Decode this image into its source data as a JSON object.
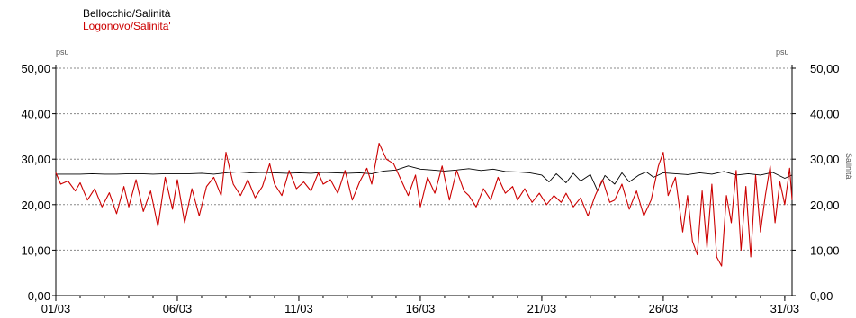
{
  "chart_data": {
    "type": "line",
    "title": "",
    "xlabel": "",
    "ylabel_left": "psu",
    "ylabel_right": "psu",
    "right_axis_title": "Salinità",
    "xlim": [
      1,
      31.3
    ],
    "ylim": [
      0,
      50
    ],
    "y_ticks": [
      "0,00",
      "10,00",
      "20,00",
      "30,00",
      "40,00",
      "50,00"
    ],
    "y_tick_values": [
      0,
      10,
      20,
      30,
      40,
      50
    ],
    "x_ticks": [
      "01/03",
      "06/03",
      "11/03",
      "16/03",
      "21/03",
      "26/03",
      "31/03"
    ],
    "x_tick_values": [
      1,
      6,
      11,
      16,
      21,
      26,
      31
    ],
    "grid": true,
    "legend_position": "top-left",
    "series": [
      {
        "name": "Bellocchio/Salinità",
        "color": "#000000",
        "x": [
          1.0,
          1.5,
          2.0,
          2.5,
          3.0,
          3.5,
          4.0,
          4.5,
          5.0,
          5.5,
          6.0,
          6.5,
          7.0,
          7.5,
          8.0,
          8.5,
          9.0,
          9.5,
          10.0,
          10.5,
          11.0,
          11.5,
          12.0,
          12.5,
          13.0,
          13.5,
          14.0,
          14.5,
          15.0,
          15.5,
          16.0,
          16.5,
          17.0,
          17.5,
          18.0,
          18.5,
          19.0,
          19.5,
          20.0,
          20.5,
          21.0,
          21.3,
          21.6,
          22.0,
          22.3,
          22.6,
          23.0,
          23.3,
          23.6,
          24.0,
          24.3,
          24.6,
          25.0,
          25.3,
          25.6,
          26.0,
          26.5,
          27.0,
          27.5,
          28.0,
          28.5,
          29.0,
          29.5,
          30.0,
          30.5,
          31.0,
          31.3
        ],
        "values": [
          26.7,
          26.7,
          26.7,
          26.8,
          26.7,
          26.7,
          26.8,
          26.8,
          26.7,
          26.8,
          26.8,
          26.8,
          26.9,
          26.7,
          27.0,
          27.2,
          27.0,
          27.1,
          27.0,
          26.9,
          27.0,
          26.9,
          27.1,
          27.0,
          26.9,
          27.0,
          26.8,
          27.4,
          27.6,
          28.5,
          27.8,
          27.6,
          27.4,
          27.6,
          27.9,
          27.5,
          27.8,
          27.3,
          27.2,
          27.0,
          26.5,
          25.0,
          26.8,
          24.8,
          26.9,
          25.2,
          26.6,
          23.0,
          26.4,
          24.5,
          27.0,
          25.0,
          26.5,
          27.2,
          26.0,
          27.0,
          26.8,
          26.6,
          27.0,
          26.7,
          27.3,
          26.5,
          26.8,
          26.5,
          27.1,
          25.8,
          26.5
        ]
      },
      {
        "name": "Logonovo/Salinita'",
        "color": "#cc0000",
        "x": [
          1.0,
          1.2,
          1.5,
          1.8,
          2.0,
          2.3,
          2.6,
          2.9,
          3.2,
          3.5,
          3.8,
          4.0,
          4.3,
          4.6,
          4.9,
          5.2,
          5.5,
          5.8,
          6.0,
          6.3,
          6.6,
          6.9,
          7.2,
          7.5,
          7.8,
          8.0,
          8.3,
          8.6,
          8.9,
          9.2,
          9.5,
          9.8,
          10.0,
          10.3,
          10.6,
          10.9,
          11.2,
          11.5,
          11.8,
          12.0,
          12.3,
          12.6,
          12.9,
          13.2,
          13.5,
          13.8,
          14.0,
          14.3,
          14.6,
          14.9,
          15.2,
          15.5,
          15.8,
          16.0,
          16.3,
          16.6,
          16.9,
          17.2,
          17.5,
          17.8,
          18.0,
          18.3,
          18.6,
          18.9,
          19.2,
          19.5,
          19.8,
          20.0,
          20.3,
          20.6,
          20.9,
          21.2,
          21.5,
          21.8,
          22.0,
          22.3,
          22.6,
          22.9,
          23.2,
          23.5,
          23.8,
          24.0,
          24.3,
          24.6,
          24.9,
          25.2,
          25.5,
          25.8,
          26.0,
          26.2,
          26.5,
          26.8,
          27.0,
          27.2,
          27.4,
          27.6,
          27.8,
          28.0,
          28.2,
          28.4,
          28.6,
          28.8,
          29.0,
          29.2,
          29.4,
          29.6,
          29.8,
          30.0,
          30.2,
          30.4,
          30.6,
          30.8,
          31.0,
          31.2,
          31.3
        ],
        "values": [
          27.0,
          24.5,
          25.2,
          23.0,
          24.8,
          21.0,
          23.5,
          19.5,
          22.6,
          18.0,
          24.0,
          19.5,
          25.5,
          18.5,
          23.0,
          15.2,
          26.0,
          19.0,
          25.5,
          16.0,
          23.5,
          17.5,
          24.0,
          26.0,
          22.0,
          31.5,
          24.5,
          22.0,
          25.5,
          21.5,
          24.0,
          29.0,
          24.5,
          22.0,
          27.5,
          23.5,
          25.0,
          23.0,
          27.0,
          24.5,
          25.5,
          22.5,
          27.5,
          21.0,
          25.0,
          28.0,
          24.5,
          33.5,
          30.0,
          29.0,
          25.5,
          22.0,
          26.5,
          19.5,
          26.0,
          22.5,
          28.5,
          21.0,
          27.5,
          23.0,
          22.0,
          19.5,
          23.5,
          21.0,
          26.0,
          22.5,
          24.0,
          21.0,
          23.5,
          20.5,
          22.5,
          20.0,
          22.0,
          20.5,
          22.5,
          19.5,
          21.5,
          17.5,
          22.0,
          25.5,
          20.5,
          21.0,
          24.5,
          19.0,
          23.0,
          17.5,
          21.0,
          28.5,
          31.5,
          22.0,
          26.0,
          14.0,
          22.0,
          12.0,
          9.0,
          23.0,
          10.5,
          24.5,
          8.5,
          6.5,
          22.0,
          16.0,
          27.5,
          10.0,
          24.0,
          8.5,
          26.5,
          14.0,
          22.0,
          28.5,
          16.0,
          25.0,
          20.0,
          28.0,
          21.0
        ]
      }
    ]
  }
}
